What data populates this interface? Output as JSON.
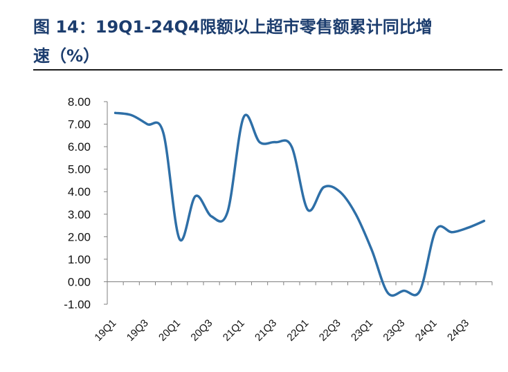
{
  "title": {
    "line1": "图 14：19Q1-24Q4限额以上超市零售额累计同比增",
    "line2": "速（%）"
  },
  "chart_data": {
    "type": "line",
    "title": "图 14：19Q1-24Q4限额以上超市零售额累计同比增速（%）",
    "xlabel": "",
    "ylabel": "",
    "ylim": [
      -1.0,
      8.0
    ],
    "ytick_step": 1.0,
    "yticks": [
      "-1.00",
      "0.00",
      "1.00",
      "2.00",
      "3.00",
      "4.00",
      "5.00",
      "6.00",
      "7.00",
      "8.00"
    ],
    "grid": false,
    "legend": "none",
    "categories": [
      "19Q1",
      "19Q2",
      "19Q3",
      "19Q4",
      "20Q1",
      "20Q2",
      "20Q3",
      "20Q4",
      "21Q1",
      "21Q2",
      "21Q3",
      "21Q4",
      "22Q1",
      "22Q2",
      "22Q3",
      "22Q4",
      "23Q1",
      "23Q2",
      "23Q3",
      "23Q4",
      "24Q1",
      "24Q2",
      "24Q3",
      "24Q4"
    ],
    "xtick_labels": [
      "19Q1",
      "",
      "19Q3",
      "",
      "20Q1",
      "",
      "20Q3",
      "",
      "21Q1",
      "",
      "21Q3",
      "",
      "22Q1",
      "",
      "22Q3",
      "",
      "23Q1",
      "",
      "23Q3",
      "",
      "24Q1",
      "",
      "24Q3",
      ""
    ],
    "series": [
      {
        "color": "#2e6fa7",
        "values": [
          7.5,
          7.4,
          7.0,
          6.6,
          1.9,
          3.8,
          2.9,
          3.1,
          7.3,
          6.2,
          6.2,
          6.0,
          3.2,
          4.2,
          4.0,
          3.0,
          1.4,
          -0.5,
          -0.4,
          -0.4,
          2.3,
          2.2,
          2.4,
          2.7
        ]
      }
    ]
  }
}
